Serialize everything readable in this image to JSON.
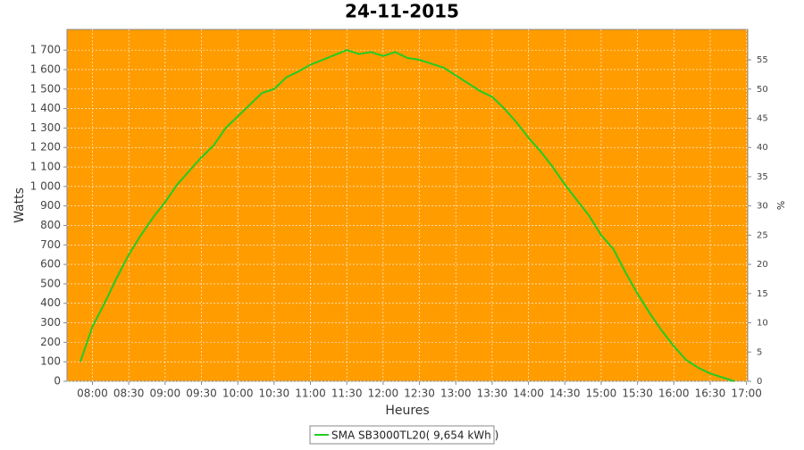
{
  "chart_data": {
    "type": "line",
    "title": "24-11-2015",
    "x_label": "Heures",
    "y_label": "Watts",
    "y2_label": "%",
    "x": [
      "07:50",
      "08:00",
      "08:10",
      "08:20",
      "08:30",
      "08:40",
      "08:50",
      "09:00",
      "09:10",
      "09:20",
      "09:30",
      "09:40",
      "09:50",
      "10:00",
      "10:10",
      "10:20",
      "10:30",
      "10:40",
      "10:50",
      "11:00",
      "11:10",
      "11:20",
      "11:30",
      "11:40",
      "11:50",
      "12:00",
      "12:10",
      "12:20",
      "12:30",
      "12:40",
      "12:50",
      "13:00",
      "13:10",
      "13:20",
      "13:30",
      "13:40",
      "13:50",
      "14:00",
      "14:10",
      "14:20",
      "14:30",
      "14:40",
      "14:50",
      "15:00",
      "15:10",
      "15:20",
      "15:30",
      "15:40",
      "15:50",
      "16:00",
      "16:10",
      "16:20",
      "16:30",
      "16:40",
      "16:50"
    ],
    "series": [
      {
        "name": "SMA SB3000TL20( 9,654 kWh )",
        "color": "#22cc22",
        "values": [
          100,
          280,
          400,
          530,
          650,
          750,
          840,
          920,
          1010,
          1080,
          1150,
          1210,
          1300,
          1360,
          1420,
          1480,
          1500,
          1560,
          1590,
          1625,
          1650,
          1675,
          1700,
          1680,
          1690,
          1670,
          1690,
          1660,
          1650,
          1630,
          1610,
          1570,
          1530,
          1490,
          1460,
          1400,
          1330,
          1250,
          1180,
          1100,
          1010,
          930,
          850,
          750,
          680,
          560,
          450,
          350,
          260,
          180,
          110,
          70,
          40,
          20,
          0
        ]
      }
    ],
    "xlim": [
      "07:39",
      "17:01"
    ],
    "xticks": [
      "08:00",
      "08:30",
      "09:00",
      "09:30",
      "10:00",
      "10:30",
      "11:00",
      "11:30",
      "12:00",
      "12:30",
      "13:00",
      "13:30",
      "14:00",
      "14:30",
      "15:00",
      "15:30",
      "16:00",
      "16:30",
      "17:00"
    ],
    "ylim": [
      0,
      1806
    ],
    "yticks": [
      0,
      100,
      200,
      300,
      400,
      500,
      600,
      700,
      800,
      900,
      {
        "value": 1000,
        "label": "1 000"
      },
      {
        "value": 1100,
        "label": "1 100"
      },
      {
        "value": 1200,
        "label": "1 200"
      },
      {
        "value": 1300,
        "label": "1 300"
      },
      {
        "value": 1400,
        "label": "1 400"
      },
      {
        "value": 1500,
        "label": "1 500"
      },
      {
        "value": 1600,
        "label": "1 600"
      },
      {
        "value": 1700,
        "label": "1 700"
      }
    ],
    "y2lim": [
      0,
      60.2
    ],
    "y2ticks": [
      0,
      5,
      10,
      15,
      20,
      25,
      30,
      35,
      40,
      45,
      50,
      55
    ],
    "grid": true,
    "plot_background": "#ff9c00"
  }
}
